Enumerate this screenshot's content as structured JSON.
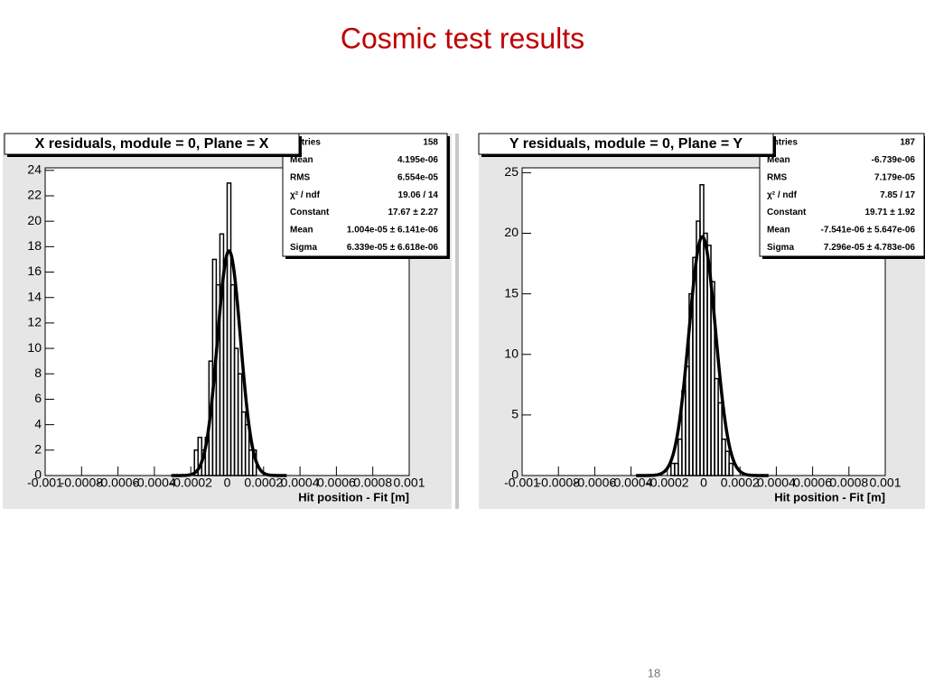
{
  "slide": {
    "title": "Cosmic test results",
    "page_number": "18"
  },
  "chart_data": [
    {
      "type": "histogram",
      "title": "X residuals, module = 0, Plane = X",
      "x_label": "Hit position - Fit  [m]",
      "bins": [
        -0.00022,
        -0.0002,
        -0.00018,
        -0.00016,
        -0.00014,
        -0.00012,
        -0.0001,
        -8e-05,
        -6e-05,
        -4e-05,
        -2e-05,
        0,
        2e-05,
        4e-05,
        6e-05,
        8e-05,
        0.0001,
        0.00012,
        0.00014,
        0.00016,
        0.00018,
        0.0002,
        0.00022
      ],
      "values": [
        0,
        0,
        2,
        3,
        2,
        3,
        9,
        17,
        15,
        19,
        17,
        23,
        15,
        10,
        8,
        5,
        4,
        2,
        2,
        0,
        0,
        0
      ],
      "xlim": [
        -0.001,
        0.001
      ],
      "xticks": [
        -0.001,
        -0.0008,
        -0.0006,
        -0.0004,
        -0.0002,
        0,
        0.0002,
        0.0004,
        0.0006,
        0.0008,
        0.001
      ],
      "ylim": [
        0,
        24.2
      ],
      "yticks": [
        0,
        2,
        4,
        6,
        8,
        10,
        12,
        14,
        16,
        18,
        20,
        22,
        24
      ],
      "fit": {
        "constant": 17.67,
        "mean": 1.004e-05,
        "sigma": 6.339e-05
      },
      "stats": [
        [
          "Entries",
          "158"
        ],
        [
          "Mean",
          "4.195e-06"
        ],
        [
          "RMS",
          "6.554e-05"
        ],
        [
          "χ² / ndf",
          "19.06 / 14"
        ],
        [
          "Constant",
          "17.67 ± 2.27"
        ],
        [
          "Mean",
          "1.004e-05 ± 6.141e-06"
        ],
        [
          "Sigma",
          "6.339e-05 ± 6.618e-06"
        ]
      ]
    },
    {
      "type": "histogram",
      "title": "Y residuals, module = 0, Plane = Y",
      "x_label": "Hit position - Fit  [m]",
      "bins": [
        -0.00022,
        -0.0002,
        -0.00018,
        -0.00016,
        -0.00014,
        -0.00012,
        -0.0001,
        -8e-05,
        -6e-05,
        -4e-05,
        -2e-05,
        0,
        2e-05,
        4e-05,
        6e-05,
        8e-05,
        0.0001,
        0.00012,
        0.00014,
        0.00016,
        0.00018,
        0.0002,
        0.00022
      ],
      "values": [
        0,
        0,
        1,
        1,
        3,
        7,
        9,
        15,
        18,
        21,
        24,
        20,
        19,
        16,
        8,
        6,
        3,
        2,
        1,
        0,
        0,
        0
      ],
      "xlim": [
        -0.001,
        0.001
      ],
      "xticks": [
        -0.001,
        -0.0008,
        -0.0006,
        -0.0004,
        -0.0002,
        0,
        0.0002,
        0.0004,
        0.0006,
        0.0008,
        0.001
      ],
      "ylim": [
        0,
        25.4
      ],
      "yticks": [
        0,
        5,
        10,
        15,
        20,
        25
      ],
      "fit": {
        "constant": 19.71,
        "mean": -7.541e-06,
        "sigma": 7.296e-05
      },
      "stats": [
        [
          "Entries",
          "187"
        ],
        [
          "Mean",
          "-6.739e-06"
        ],
        [
          "RMS",
          "7.179e-05"
        ],
        [
          "χ² / ndf",
          "7.85 / 17"
        ],
        [
          "Constant",
          "19.71 ± 1.92"
        ],
        [
          "Mean",
          "-7.541e-06 ± 5.647e-06"
        ],
        [
          "Sigma",
          "7.296e-05 ± 4.783e-06"
        ]
      ]
    }
  ]
}
